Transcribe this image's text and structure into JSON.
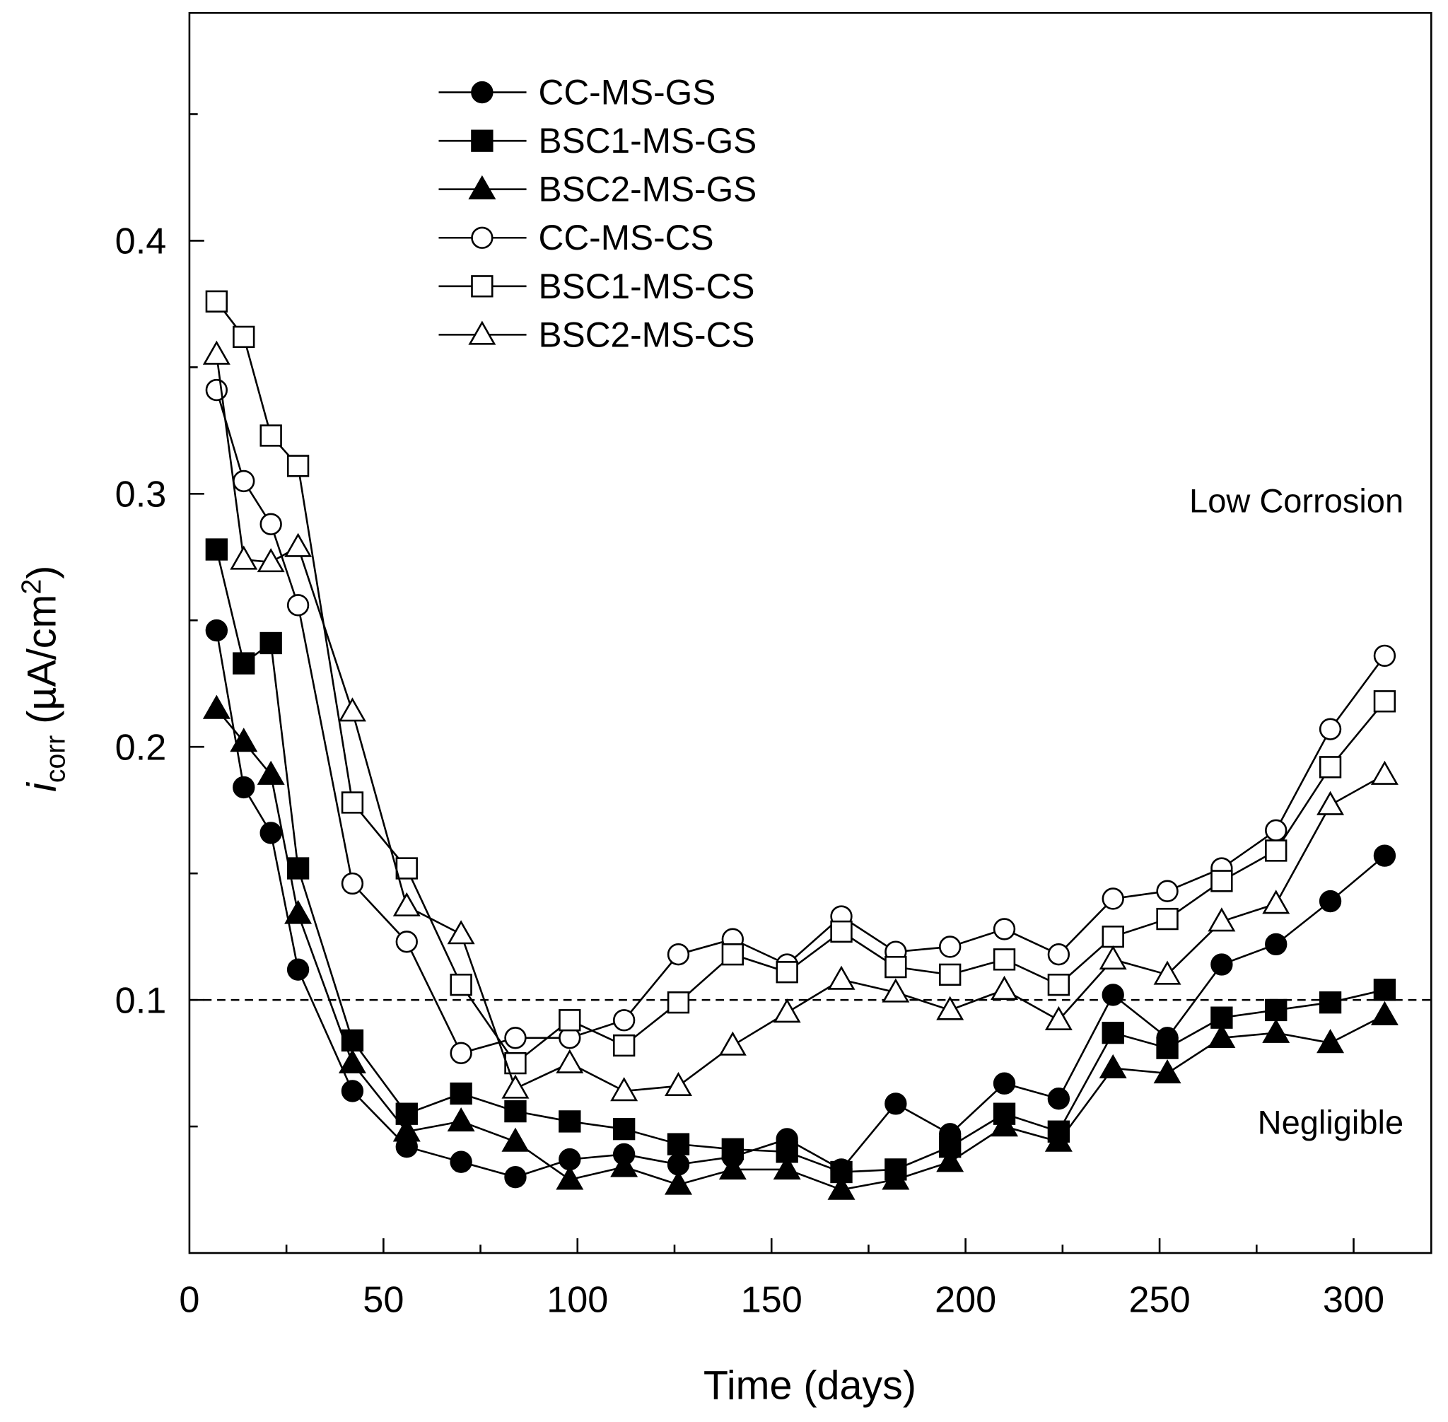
{
  "chart_data": {
    "type": "line",
    "title": "",
    "xlabel": "Time (days)",
    "ylabel_main": "i",
    "ylabel_sub": "corr",
    "ylabel_unit": " (µA/cm",
    "ylabel_sup": "2",
    "ylabel_close": ")",
    "xlim": [
      0,
      320
    ],
    "ylim": [
      0,
      0.49
    ],
    "xticks": [
      0,
      50,
      100,
      150,
      200,
      250,
      300
    ],
    "xtick_labels": [
      "0",
      "50",
      "100",
      "150",
      "200",
      "250",
      "300"
    ],
    "yticks": [
      0.1,
      0.2,
      0.3,
      0.4
    ],
    "ytick_labels": [
      "0.1",
      "0.2",
      "0.3",
      "0.4"
    ],
    "threshold": 0.1,
    "annotations": {
      "upper": "Low Corrosion",
      "lower": "Negligible"
    },
    "legend_position": "top-left",
    "x": [
      7,
      14,
      21,
      28,
      42,
      56,
      70,
      84,
      98,
      112,
      126,
      140,
      154,
      168,
      182,
      196,
      210,
      224,
      238,
      252,
      266,
      280,
      294,
      308
    ],
    "series": [
      {
        "name": "CC-MS-GS",
        "marker": "circle",
        "filled": true,
        "values": [
          0.246,
          0.184,
          0.166,
          0.112,
          0.064,
          0.042,
          0.036,
          0.03,
          0.037,
          0.039,
          0.035,
          0.038,
          0.045,
          0.033,
          0.059,
          0.047,
          0.067,
          0.061,
          0.102,
          0.085,
          0.114,
          0.122,
          0.139,
          0.157
        ]
      },
      {
        "name": "BSC1-MS-GS",
        "marker": "square",
        "filled": true,
        "values": [
          0.278,
          0.233,
          0.241,
          0.152,
          0.084,
          0.055,
          0.063,
          0.056,
          0.052,
          0.049,
          0.043,
          0.041,
          0.04,
          0.032,
          0.033,
          0.042,
          0.055,
          0.048,
          0.087,
          0.081,
          0.093,
          0.096,
          0.099,
          0.104
        ]
      },
      {
        "name": "BSC2-MS-GS",
        "marker": "triangle",
        "filled": true,
        "values": [
          0.215,
          0.202,
          0.189,
          0.134,
          0.075,
          0.048,
          0.052,
          0.044,
          0.029,
          0.034,
          0.027,
          0.033,
          0.033,
          0.025,
          0.029,
          0.036,
          0.05,
          0.044,
          0.073,
          0.071,
          0.085,
          0.087,
          0.083,
          0.094
        ]
      },
      {
        "name": "CC-MS-CS",
        "marker": "circle",
        "filled": false,
        "values": [
          0.341,
          0.305,
          0.288,
          0.256,
          0.146,
          0.123,
          0.079,
          0.085,
          0.085,
          0.092,
          0.118,
          0.124,
          0.114,
          0.133,
          0.119,
          0.121,
          0.128,
          0.118,
          0.14,
          0.143,
          0.152,
          0.167,
          0.207,
          0.236
        ]
      },
      {
        "name": "BSC1-MS-CS",
        "marker": "square",
        "filled": false,
        "values": [
          0.376,
          0.362,
          0.323,
          0.311,
          0.178,
          0.152,
          0.106,
          0.075,
          0.092,
          0.082,
          0.099,
          0.118,
          0.111,
          0.127,
          0.113,
          0.11,
          0.116,
          0.106,
          0.125,
          0.132,
          0.147,
          0.159,
          0.192,
          0.218
        ]
      },
      {
        "name": "BSC2-MS-CS",
        "marker": "triangle",
        "filled": false,
        "values": [
          0.355,
          0.274,
          0.273,
          0.279,
          0.214,
          0.137,
          0.126,
          0.065,
          0.075,
          0.064,
          0.066,
          0.082,
          0.095,
          0.108,
          0.103,
          0.096,
          0.104,
          0.092,
          0.116,
          0.11,
          0.131,
          0.138,
          0.177,
          0.189
        ]
      }
    ]
  }
}
